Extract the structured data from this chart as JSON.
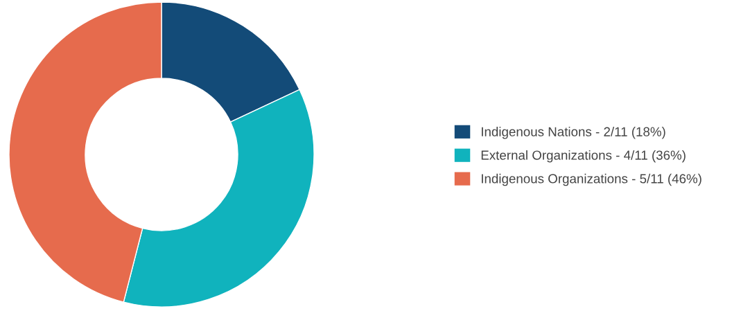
{
  "chart_data": {
    "type": "donut",
    "categories": [
      "Indigenous Nations - 2/11 (18%)",
      "External Organizations - 4/11 (36%)",
      "Indigenous Organizations - 5/11 (46%)"
    ],
    "values": [
      18,
      36,
      46
    ],
    "colors": [
      "#134b78",
      "#10b3bd",
      "#e66b4d"
    ],
    "legend": "right"
  }
}
